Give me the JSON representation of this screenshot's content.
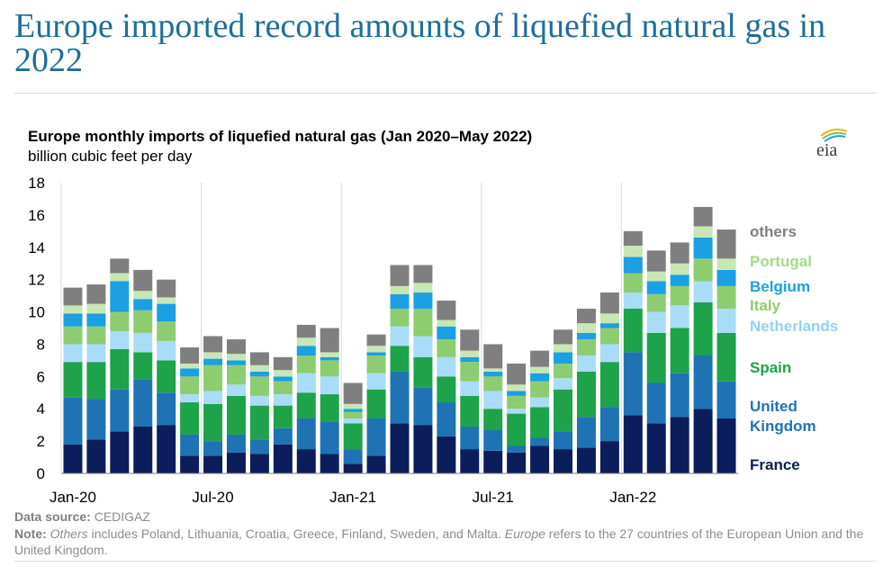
{
  "headline": "Europe imported record amounts of liquefied natural gas in 2022",
  "chart_data": {
    "type": "bar",
    "stacked": true,
    "title": "Europe monthly imports of liquefied natural gas (Jan 2020–May 2022)",
    "subtitle": "billion cubic feet per day",
    "ylim": [
      0,
      18
    ],
    "yticks": [
      "0",
      "2",
      "4",
      "6",
      "8",
      "10",
      "12",
      "14",
      "16",
      "18"
    ],
    "xtick_labels": [
      {
        "index": 0,
        "label": "Jan-20"
      },
      {
        "index": 6,
        "label": "Jul-20"
      },
      {
        "index": 12,
        "label": "Jan-21"
      },
      {
        "index": 18,
        "label": "Jul-21"
      },
      {
        "index": 24,
        "label": "Jan-22"
      }
    ],
    "gridlines": "vertical at Jan and Jul",
    "categories": [
      "Jan-20",
      "Feb-20",
      "Mar-20",
      "Apr-20",
      "May-20",
      "Jun-20",
      "Jul-20",
      "Aug-20",
      "Sep-20",
      "Oct-20",
      "Nov-20",
      "Dec-20",
      "Jan-21",
      "Feb-21",
      "Mar-21",
      "Apr-21",
      "May-21",
      "Jun-21",
      "Jul-21",
      "Aug-21",
      "Sep-21",
      "Oct-21",
      "Nov-21",
      "Dec-21",
      "Jan-22",
      "Feb-22",
      "Mar-22",
      "Apr-22",
      "May-22"
    ],
    "series": [
      {
        "name": "France",
        "color": "#0b1e5b",
        "values": [
          1.8,
          2.1,
          2.6,
          2.9,
          3.0,
          1.1,
          1.1,
          1.3,
          1.2,
          1.8,
          1.5,
          1.2,
          0.6,
          1.1,
          3.1,
          3.0,
          2.3,
          1.5,
          1.4,
          1.3,
          1.7,
          1.5,
          1.6,
          2.0,
          3.6,
          3.1,
          3.5,
          4.0,
          3.4
        ]
      },
      {
        "name": "United Kingdom",
        "color": "#1f73b5",
        "values": [
          2.9,
          2.5,
          2.6,
          2.9,
          2.0,
          1.3,
          0.9,
          1.1,
          0.9,
          1.0,
          1.9,
          2.0,
          0.9,
          2.3,
          3.2,
          2.3,
          2.1,
          1.4,
          1.3,
          0.4,
          0.5,
          1.1,
          1.9,
          2.1,
          3.9,
          2.5,
          2.7,
          3.3,
          2.3
        ]
      },
      {
        "name": "Spain",
        "color": "#1ea24a",
        "values": [
          2.2,
          2.3,
          2.5,
          1.7,
          2.0,
          2.0,
          2.3,
          2.4,
          2.1,
          1.4,
          1.6,
          1.7,
          1.6,
          1.8,
          1.6,
          1.9,
          1.6,
          1.9,
          1.3,
          2.0,
          1.9,
          2.6,
          2.8,
          2.8,
          2.7,
          3.1,
          2.8,
          3.3,
          3.0
        ]
      },
      {
        "name": "Netherlands",
        "color": "#a9dcf7",
        "values": [
          1.1,
          1.1,
          1.1,
          1.2,
          1.2,
          0.5,
          0.8,
          0.7,
          0.6,
          0.7,
          1.2,
          1.1,
          0.3,
          1.0,
          1.2,
          1.3,
          1.2,
          0.9,
          1.1,
          0.3,
          0.6,
          0.7,
          1.0,
          1.1,
          1.0,
          1.3,
          1.4,
          1.3,
          1.5
        ]
      },
      {
        "name": "Italy",
        "color": "#8ecc72",
        "values": [
          1.1,
          1.1,
          1.2,
          1.4,
          1.2,
          1.1,
          1.6,
          1.2,
          1.2,
          0.8,
          1.1,
          1.0,
          0.4,
          1.1,
          1.1,
          1.7,
          1.1,
          1.2,
          0.9,
          0.8,
          1.0,
          0.9,
          1.0,
          1.0,
          1.2,
          1.1,
          1.2,
          1.4,
          1.4
        ]
      },
      {
        "name": "Belgium",
        "color": "#1c9fe3",
        "values": [
          0.8,
          0.8,
          1.9,
          0.7,
          1.1,
          0.5,
          0.4,
          0.3,
          0.3,
          0.3,
          0.6,
          0.2,
          0.2,
          0.2,
          0.9,
          1.0,
          0.8,
          0.3,
          0.3,
          0.3,
          0.5,
          0.7,
          0.4,
          0.3,
          1.0,
          0.8,
          0.7,
          1.3,
          1.0
        ]
      },
      {
        "name": "Portugal",
        "color": "#c8e7b4",
        "values": [
          0.5,
          0.6,
          0.5,
          0.5,
          0.4,
          0.3,
          0.4,
          0.4,
          0.4,
          0.4,
          0.5,
          0.3,
          0.3,
          0.4,
          0.5,
          0.6,
          0.4,
          0.4,
          0.2,
          0.4,
          0.4,
          0.5,
          0.6,
          0.6,
          0.7,
          0.6,
          0.7,
          0.7,
          0.7
        ]
      },
      {
        "name": "others",
        "color": "#7f7f7f",
        "values": [
          1.1,
          1.2,
          0.9,
          1.3,
          1.1,
          1.0,
          1.0,
          0.9,
          0.8,
          0.8,
          0.8,
          1.5,
          1.3,
          0.7,
          1.3,
          1.1,
          1.2,
          1.3,
          1.5,
          1.3,
          1.0,
          0.9,
          0.9,
          1.3,
          0.9,
          1.3,
          1.3,
          1.2,
          1.8
        ]
      }
    ],
    "legend_labels": [
      {
        "series": "others",
        "text": "others",
        "color": "#7f7f7f"
      },
      {
        "series": "Portugal",
        "text": "Portugal",
        "color": "#a7d88a"
      },
      {
        "series": "Belgium",
        "text": "Belgium",
        "color": "#1c9fe3"
      },
      {
        "series": "Italy",
        "text": "Italy",
        "color": "#8ecc72"
      },
      {
        "series": "Netherlands",
        "text": "Netherlands",
        "color": "#90d3f5"
      },
      {
        "series": "Spain",
        "text": "Spain",
        "color": "#1ea24a"
      },
      {
        "series": "United Kingdom",
        "text": "United",
        "color": "#1f73b5"
      },
      {
        "series": "United Kingdom",
        "text": "Kingdom",
        "color": "#1f73b5"
      },
      {
        "series": "France",
        "text": "France",
        "color": "#0b1e5b"
      }
    ]
  },
  "footer": {
    "source_label": "Data source:",
    "source_text": "CEDIGAZ",
    "note_label": "Note:",
    "note_italic_1": "Others",
    "note_text_1": "includes Poland, Lithuania, Croatia, Greece, Finland, Sweden, and Malta.",
    "note_italic_2": "Europe",
    "note_text_2": "refers to the 27 countries of the European Union and the United Kingdom."
  },
  "logo_text": "eia"
}
